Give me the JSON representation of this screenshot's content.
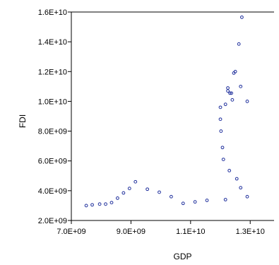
{
  "chart_data": {
    "type": "scatter",
    "title": "",
    "xlabel": "GDP",
    "ylabel": "FDI",
    "xlim": [
      7000000000.0,
      13800000000.0
    ],
    "ylim": [
      2000000000.0,
      16000000000.0
    ],
    "x_ticks": [
      7000000000.0,
      9000000000.0,
      11000000000.0,
      13000000000.0
    ],
    "x_tick_labels": [
      "7.0E+09",
      "9.0E+09",
      "1.1E+10",
      "1.3E+10"
    ],
    "y_ticks": [
      2000000000.0,
      4000000000.0,
      6000000000.0,
      8000000000.0,
      10000000000.0,
      12000000000.0,
      14000000000.0,
      16000000000.0
    ],
    "y_tick_labels": [
      "2.0E+09",
      "4.0E+09",
      "6.0E+09",
      "8.0E+09",
      "1.0E+10",
      "1.2E+10",
      "1.4E+10",
      "1.6E+10"
    ],
    "grid": false,
    "marker_color": "#1f2f9c",
    "points": [
      {
        "x": 7500000000.0,
        "y": 3000000000.0
      },
      {
        "x": 7700000000.0,
        "y": 3050000000.0
      },
      {
        "x": 7950000000.0,
        "y": 3100000000.0
      },
      {
        "x": 8150000000.0,
        "y": 3100000000.0
      },
      {
        "x": 8350000000.0,
        "y": 3200000000.0
      },
      {
        "x": 8550000000.0,
        "y": 3500000000.0
      },
      {
        "x": 8750000000.0,
        "y": 3850000000.0
      },
      {
        "x": 8950000000.0,
        "y": 4150000000.0
      },
      {
        "x": 9150000000.0,
        "y": 4600000000.0
      },
      {
        "x": 9550000000.0,
        "y": 4100000000.0
      },
      {
        "x": 9950000000.0,
        "y": 3900000000.0
      },
      {
        "x": 10350000000.0,
        "y": 3600000000.0
      },
      {
        "x": 10750000000.0,
        "y": 3150000000.0
      },
      {
        "x": 11150000000.0,
        "y": 3250000000.0
      },
      {
        "x": 11550000000.0,
        "y": 3350000000.0
      },
      {
        "x": 12000000000.0,
        "y": 9600000000.0
      },
      {
        "x": 12000000000.0,
        "y": 8800000000.0
      },
      {
        "x": 12020000000.0,
        "y": 8000000000.0
      },
      {
        "x": 12070000000.0,
        "y": 6900000000.0
      },
      {
        "x": 12100000000.0,
        "y": 6100000000.0
      },
      {
        "x": 12170000000.0,
        "y": 3400000000.0
      },
      {
        "x": 12170000000.0,
        "y": 9800000000.0
      },
      {
        "x": 12250000000.0,
        "y": 10900000000.0
      },
      {
        "x": 12250000000.0,
        "y": 10700000000.0
      },
      {
        "x": 12320000000.0,
        "y": 10550000000.0
      },
      {
        "x": 12370000000.0,
        "y": 10550000000.0
      },
      {
        "x": 12400000000.0,
        "y": 10100000000.0
      },
      {
        "x": 12300000000.0,
        "y": 5350000000.0
      },
      {
        "x": 12450000000.0,
        "y": 11900000000.0
      },
      {
        "x": 12500000000.0,
        "y": 12000000000.0
      },
      {
        "x": 12550000000.0,
        "y": 4800000000.0
      },
      {
        "x": 12620000000.0,
        "y": 13850000000.0
      },
      {
        "x": 12680000000.0,
        "y": 11000000000.0
      },
      {
        "x": 12680000000.0,
        "y": 4200000000.0
      },
      {
        "x": 12720000000.0,
        "y": 15650000000.0
      },
      {
        "x": 12900000000.0,
        "y": 10000000000.0
      },
      {
        "x": 12900000000.0,
        "y": 3600000000.0
      }
    ]
  }
}
